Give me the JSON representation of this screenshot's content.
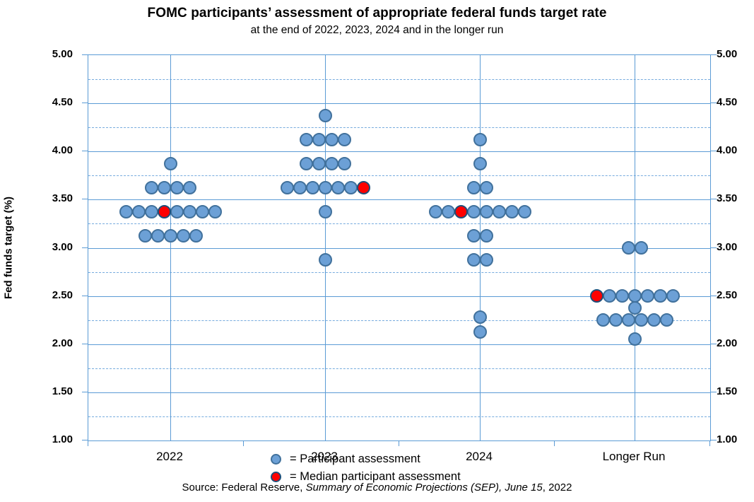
{
  "chart_data": {
    "type": "scatter",
    "subtype": "dot-plot",
    "title": "FOMC participants’ assessment of appropriate federal funds target rate",
    "subtitle": "at the end of 2022, 2023, 2024 and in the longer run",
    "ylabel": "Fed funds target (%)",
    "y_axis": {
      "min": 1.0,
      "max": 5.0,
      "major_step": 0.5,
      "minor_step": 0.25,
      "tick_labels": [
        "5.00",
        "4.50",
        "4.00",
        "3.50",
        "3.00",
        "2.50",
        "2.00",
        "1.50",
        "1.00"
      ],
      "grid": true
    },
    "categories": [
      "2022",
      "2023",
      "2024",
      "Longer Run"
    ],
    "series": [
      {
        "name": "2022",
        "dots": [
          {
            "value": 3.875,
            "count": 1
          },
          {
            "value": 3.625,
            "count": 4
          },
          {
            "value": 3.375,
            "count": 8,
            "median_index": 3
          },
          {
            "value": 3.125,
            "count": 5
          }
        ]
      },
      {
        "name": "2023",
        "dots": [
          {
            "value": 4.375,
            "count": 1
          },
          {
            "value": 4.125,
            "count": 4
          },
          {
            "value": 3.875,
            "count": 4
          },
          {
            "value": 3.625,
            "count": 7,
            "median_index": 6
          },
          {
            "value": 3.375,
            "count": 1
          },
          {
            "value": 2.875,
            "count": 1
          }
        ]
      },
      {
        "name": "2024",
        "dots": [
          {
            "value": 4.125,
            "count": 1
          },
          {
            "value": 3.875,
            "count": 1
          },
          {
            "value": 3.625,
            "count": 2
          },
          {
            "value": 3.375,
            "count": 8,
            "median_index": 2
          },
          {
            "value": 3.125,
            "count": 2
          },
          {
            "value": 2.875,
            "count": 2
          },
          {
            "value": 2.28,
            "count": 1
          },
          {
            "value": 2.13,
            "count": 1
          }
        ]
      },
      {
        "name": "Longer Run",
        "dots": [
          {
            "value": 3.0,
            "count": 2
          },
          {
            "value": 2.5,
            "count": 7,
            "median_index": 0
          },
          {
            "value": 2.375,
            "count": 1
          },
          {
            "value": 2.25,
            "count": 6
          },
          {
            "value": 2.05,
            "count": 1
          }
        ]
      }
    ],
    "legend": [
      {
        "type": "participant",
        "label": "= Participant assessment"
      },
      {
        "type": "median",
        "label": "= Median participant assessment"
      }
    ],
    "legend_position": "inside-bottom-left",
    "colors": {
      "participant_fill": "#6CA0D6",
      "participant_border": "#41719C",
      "median_fill": "#FF0000",
      "median_border": "#1F4E79",
      "grid_major": "#5B9BD5",
      "grid_minor": "#76ABDE",
      "axis_border": "#5B9BD5"
    },
    "source": {
      "prefix": "Source: Federal Reserve, ",
      "italic": "Summary of Economic Projections (SEP), June 15",
      "suffix": ", 2022"
    }
  }
}
